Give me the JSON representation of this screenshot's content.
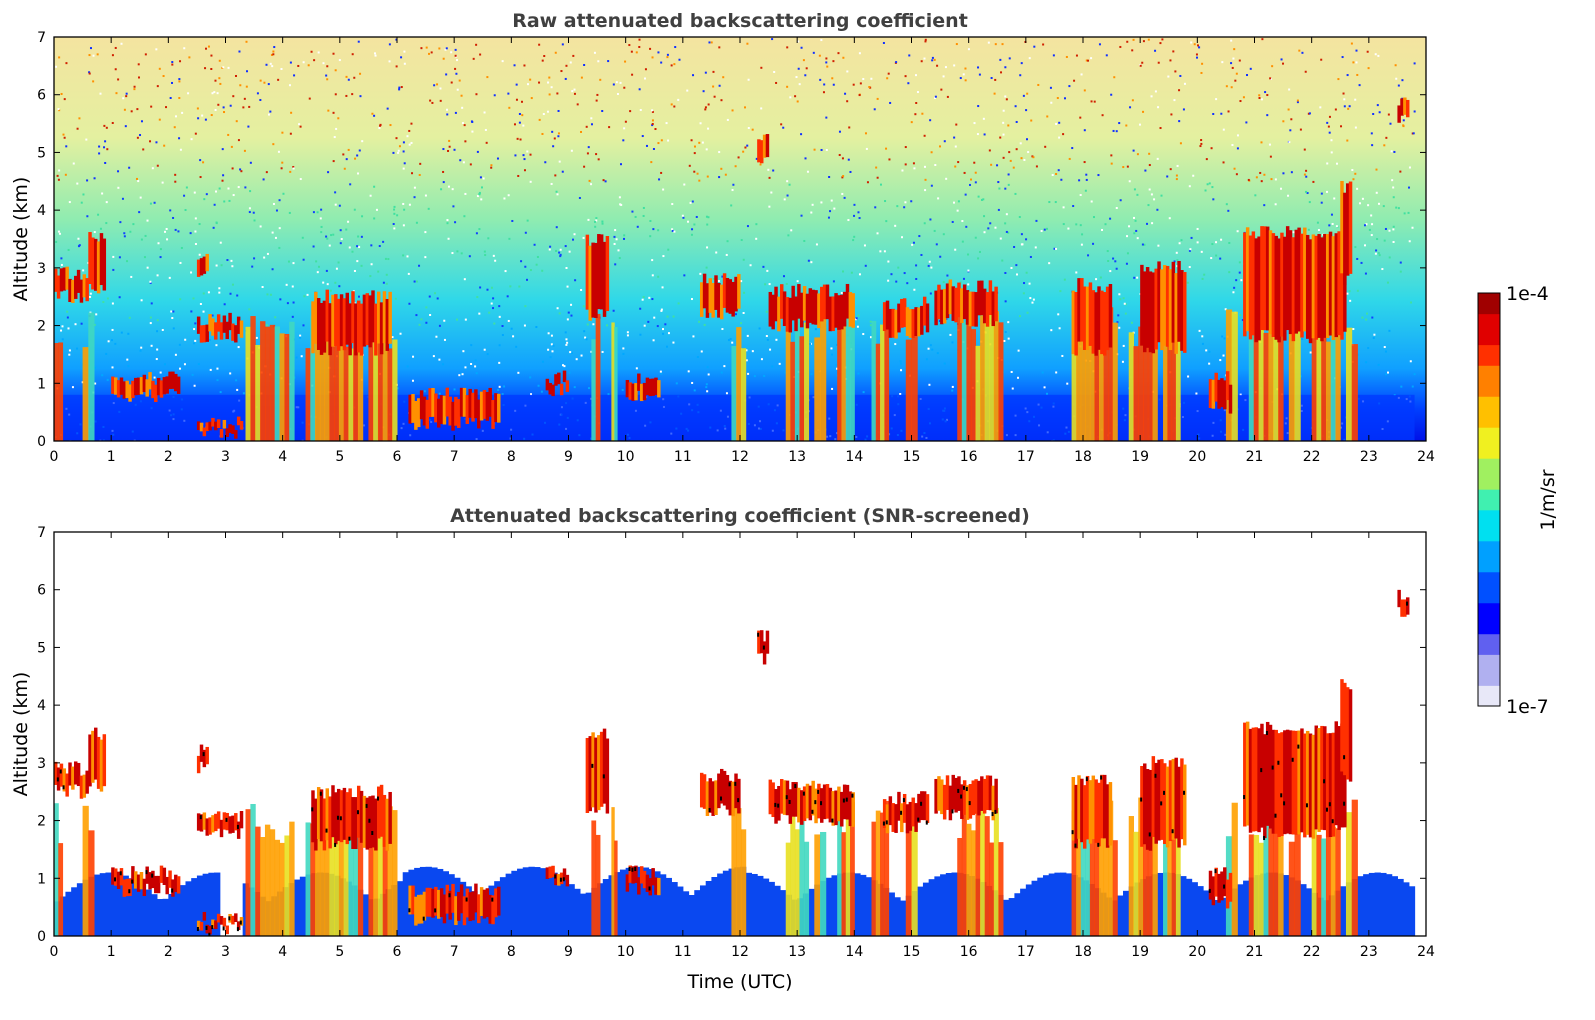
{
  "chart_data": [
    {
      "type": "heatmap",
      "title": "Raw attenuated backscattering coefficient",
      "xlabel": "",
      "ylabel": "Altitude (km)",
      "xlim": [
        0,
        24
      ],
      "ylim": [
        0,
        7
      ],
      "x_ticks": [
        "0",
        "1",
        "2",
        "3",
        "4",
        "5",
        "6",
        "7",
        "8",
        "9",
        "10",
        "11",
        "12",
        "13",
        "14",
        "15",
        "16",
        "17",
        "18",
        "19",
        "20",
        "21",
        "22",
        "23",
        "24"
      ],
      "y_ticks": [
        "0",
        "1",
        "2",
        "3",
        "4",
        "5",
        "6",
        "7"
      ],
      "screened": false,
      "background_signal": "noise increasing with altitude: blue below ~1 km, cyan/green 2-4 km, yellow/red speckle above 5 km",
      "cloud_layers": [
        {
          "t_start": 0.0,
          "t_end": 0.6,
          "base_km": 2.5,
          "top_km": 2.9,
          "intensity": "high"
        },
        {
          "t_start": 0.6,
          "t_end": 0.9,
          "base_km": 2.6,
          "top_km": 3.5,
          "intensity": "high"
        },
        {
          "t_start": 1.0,
          "t_end": 2.2,
          "base_km": 0.8,
          "top_km": 1.1,
          "intensity": "high"
        },
        {
          "t_start": 2.5,
          "t_end": 3.3,
          "base_km": 1.8,
          "top_km": 2.1,
          "intensity": "high"
        },
        {
          "t_start": 2.5,
          "t_end": 2.7,
          "base_km": 2.9,
          "top_km": 3.2,
          "intensity": "high"
        },
        {
          "t_start": 2.5,
          "t_end": 3.3,
          "base_km": 0.15,
          "top_km": 0.3,
          "intensity": "high"
        },
        {
          "t_start": 4.5,
          "t_end": 5.9,
          "base_km": 1.6,
          "top_km": 2.5,
          "intensity": "high"
        },
        {
          "t_start": 6.2,
          "t_end": 7.8,
          "base_km": 0.3,
          "top_km": 0.8,
          "intensity": "high"
        },
        {
          "t_start": 8.6,
          "t_end": 9.0,
          "base_km": 0.9,
          "top_km": 1.1,
          "intensity": "high"
        },
        {
          "t_start": 9.3,
          "t_end": 9.7,
          "base_km": 2.2,
          "top_km": 3.5,
          "intensity": "high"
        },
        {
          "t_start": 10.0,
          "t_end": 10.6,
          "base_km": 0.8,
          "top_km": 1.1,
          "intensity": "high"
        },
        {
          "t_start": 11.3,
          "t_end": 12.0,
          "base_km": 2.2,
          "top_km": 2.8,
          "intensity": "high"
        },
        {
          "t_start": 12.3,
          "t_end": 12.5,
          "base_km": 4.8,
          "top_km": 5.2,
          "intensity": "high"
        },
        {
          "t_start": 12.5,
          "t_end": 14.0,
          "base_km": 2.0,
          "top_km": 2.6,
          "intensity": "high"
        },
        {
          "t_start": 14.5,
          "t_end": 15.3,
          "base_km": 1.9,
          "top_km": 2.4,
          "intensity": "high"
        },
        {
          "t_start": 15.4,
          "t_end": 16.5,
          "base_km": 2.1,
          "top_km": 2.7,
          "intensity": "high"
        },
        {
          "t_start": 17.8,
          "t_end": 18.5,
          "base_km": 1.6,
          "top_km": 2.7,
          "intensity": "high"
        },
        {
          "t_start": 19.0,
          "t_end": 19.8,
          "base_km": 1.6,
          "top_km": 3.0,
          "intensity": "high"
        },
        {
          "t_start": 20.2,
          "t_end": 20.6,
          "base_km": 0.6,
          "top_km": 1.1,
          "intensity": "high"
        },
        {
          "t_start": 20.8,
          "t_end": 22.6,
          "base_km": 1.8,
          "top_km": 3.6,
          "intensity": "high"
        },
        {
          "t_start": 22.5,
          "t_end": 22.7,
          "base_km": 2.8,
          "top_km": 4.4,
          "intensity": "high"
        },
        {
          "t_start": 23.5,
          "t_end": 23.7,
          "base_km": 5.6,
          "top_km": 5.9,
          "intensity": "high"
        }
      ],
      "precip_columns": [
        {
          "t_start": 0.0,
          "t_end": 0.15
        },
        {
          "t_start": 0.5,
          "t_end": 0.7
        },
        {
          "t_start": 3.35,
          "t_end": 4.2
        },
        {
          "t_start": 4.4,
          "t_end": 5.4
        },
        {
          "t_start": 5.5,
          "t_end": 6.0
        },
        {
          "t_start": 9.4,
          "t_end": 9.55
        },
        {
          "t_start": 9.75,
          "t_end": 9.85
        },
        {
          "t_start": 11.85,
          "t_end": 12.1
        },
        {
          "t_start": 12.8,
          "t_end": 13.2
        },
        {
          "t_start": 13.3,
          "t_end": 13.5
        },
        {
          "t_start": 13.7,
          "t_end": 14.0
        },
        {
          "t_start": 14.3,
          "t_end": 14.6
        },
        {
          "t_start": 14.9,
          "t_end": 15.1
        },
        {
          "t_start": 15.8,
          "t_end": 16.6
        },
        {
          "t_start": 17.8,
          "t_end": 18.6
        },
        {
          "t_start": 18.8,
          "t_end": 19.3
        },
        {
          "t_start": 19.4,
          "t_end": 19.7
        },
        {
          "t_start": 20.5,
          "t_end": 20.7
        },
        {
          "t_start": 20.9,
          "t_end": 21.5
        },
        {
          "t_start": 21.6,
          "t_end": 21.8
        },
        {
          "t_start": 22.0,
          "t_end": 22.5
        },
        {
          "t_start": 22.6,
          "t_end": 22.8
        }
      ]
    },
    {
      "type": "heatmap",
      "title": "Attenuated backscattering coefficient (SNR-screened)",
      "xlabel": "Time (UTC)",
      "ylabel": "Altitude (km)",
      "xlim": [
        0,
        24
      ],
      "ylim": [
        0,
        7
      ],
      "x_ticks": [
        "0",
        "1",
        "2",
        "3",
        "4",
        "5",
        "6",
        "7",
        "8",
        "9",
        "10",
        "11",
        "12",
        "13",
        "14",
        "15",
        "16",
        "17",
        "18",
        "19",
        "20",
        "21",
        "22",
        "23",
        "24"
      ],
      "y_ticks": [
        "0",
        "1",
        "2",
        "3",
        "4",
        "5",
        "6",
        "7"
      ],
      "screened": true,
      "background_signal": "noise removed (white); boundary layer blue below ~1 km; cloud edges marked black"
    }
  ],
  "colorbar": {
    "label": "1/m/sr",
    "max_label": "1e-4",
    "min_label": "1e-7",
    "colormap": [
      "#e8e8f8",
      "#b0b0f0",
      "#6060f0",
      "#0000ff",
      "#0050ff",
      "#00a0ff",
      "#00e0f0",
      "#40f0b0",
      "#a0f060",
      "#f0f020",
      "#ffc000",
      "#ff8000",
      "#ff3000",
      "#e00000",
      "#a00000"
    ]
  }
}
